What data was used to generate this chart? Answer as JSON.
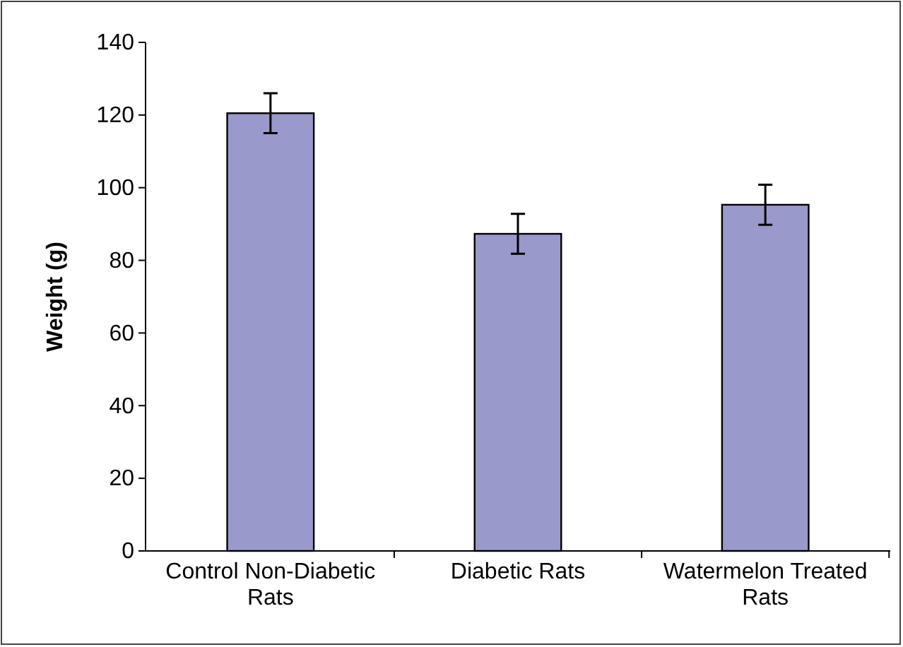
{
  "chart_data": {
    "type": "bar",
    "ylabel": "Weight (g)",
    "categories": [
      "Control Non-Diabetic Rats",
      "Diabetic Rats",
      "Watermelon Treated Rats"
    ],
    "values": [
      120.5,
      87.3,
      95.3
    ],
    "errors": [
      5.5,
      5.5,
      5.5
    ],
    "color": "#9999cc",
    "ylim": [
      0,
      140
    ],
    "yticks": [
      0,
      20,
      40,
      60,
      80,
      100,
      120,
      140
    ],
    "grid": false
  }
}
